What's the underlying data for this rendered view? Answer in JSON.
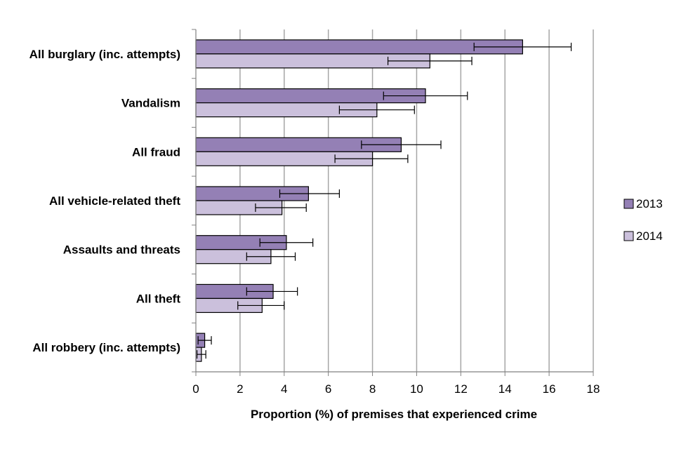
{
  "chart_data": {
    "type": "bar",
    "orientation": "horizontal",
    "categories": [
      "All burglary (inc. attempts)",
      "Vandalism",
      "All fraud",
      "All vehicle-related theft",
      "Assaults and threats",
      "All theft",
      "All robbery (inc. attempts)"
    ],
    "series": [
      {
        "name": "2013",
        "color": "#9480b5",
        "values": [
          14.8,
          10.4,
          9.3,
          5.1,
          4.1,
          3.5,
          0.4
        ],
        "error_low": [
          12.6,
          8.5,
          7.5,
          3.8,
          2.9,
          2.3,
          0.1
        ],
        "error_high": [
          17.0,
          12.3,
          11.1,
          6.5,
          5.3,
          4.6,
          0.7
        ]
      },
      {
        "name": "2014",
        "color": "#cbc0dc",
        "values": [
          10.6,
          8.2,
          8.0,
          3.9,
          3.4,
          3.0,
          0.25
        ],
        "error_low": [
          8.7,
          6.5,
          6.3,
          2.7,
          2.3,
          1.9,
          0.05
        ],
        "error_high": [
          12.5,
          9.9,
          9.6,
          5.0,
          4.5,
          4.0,
          0.45
        ]
      }
    ],
    "xlabel": "Proportion (%) of premises that experienced crime",
    "ylabel": "",
    "xlim": [
      0,
      18
    ],
    "xticks": [
      "0",
      "2",
      "4",
      "6",
      "8",
      "10",
      "12",
      "14",
      "16",
      "18"
    ],
    "grid": "vertical",
    "legend_position": "right"
  }
}
